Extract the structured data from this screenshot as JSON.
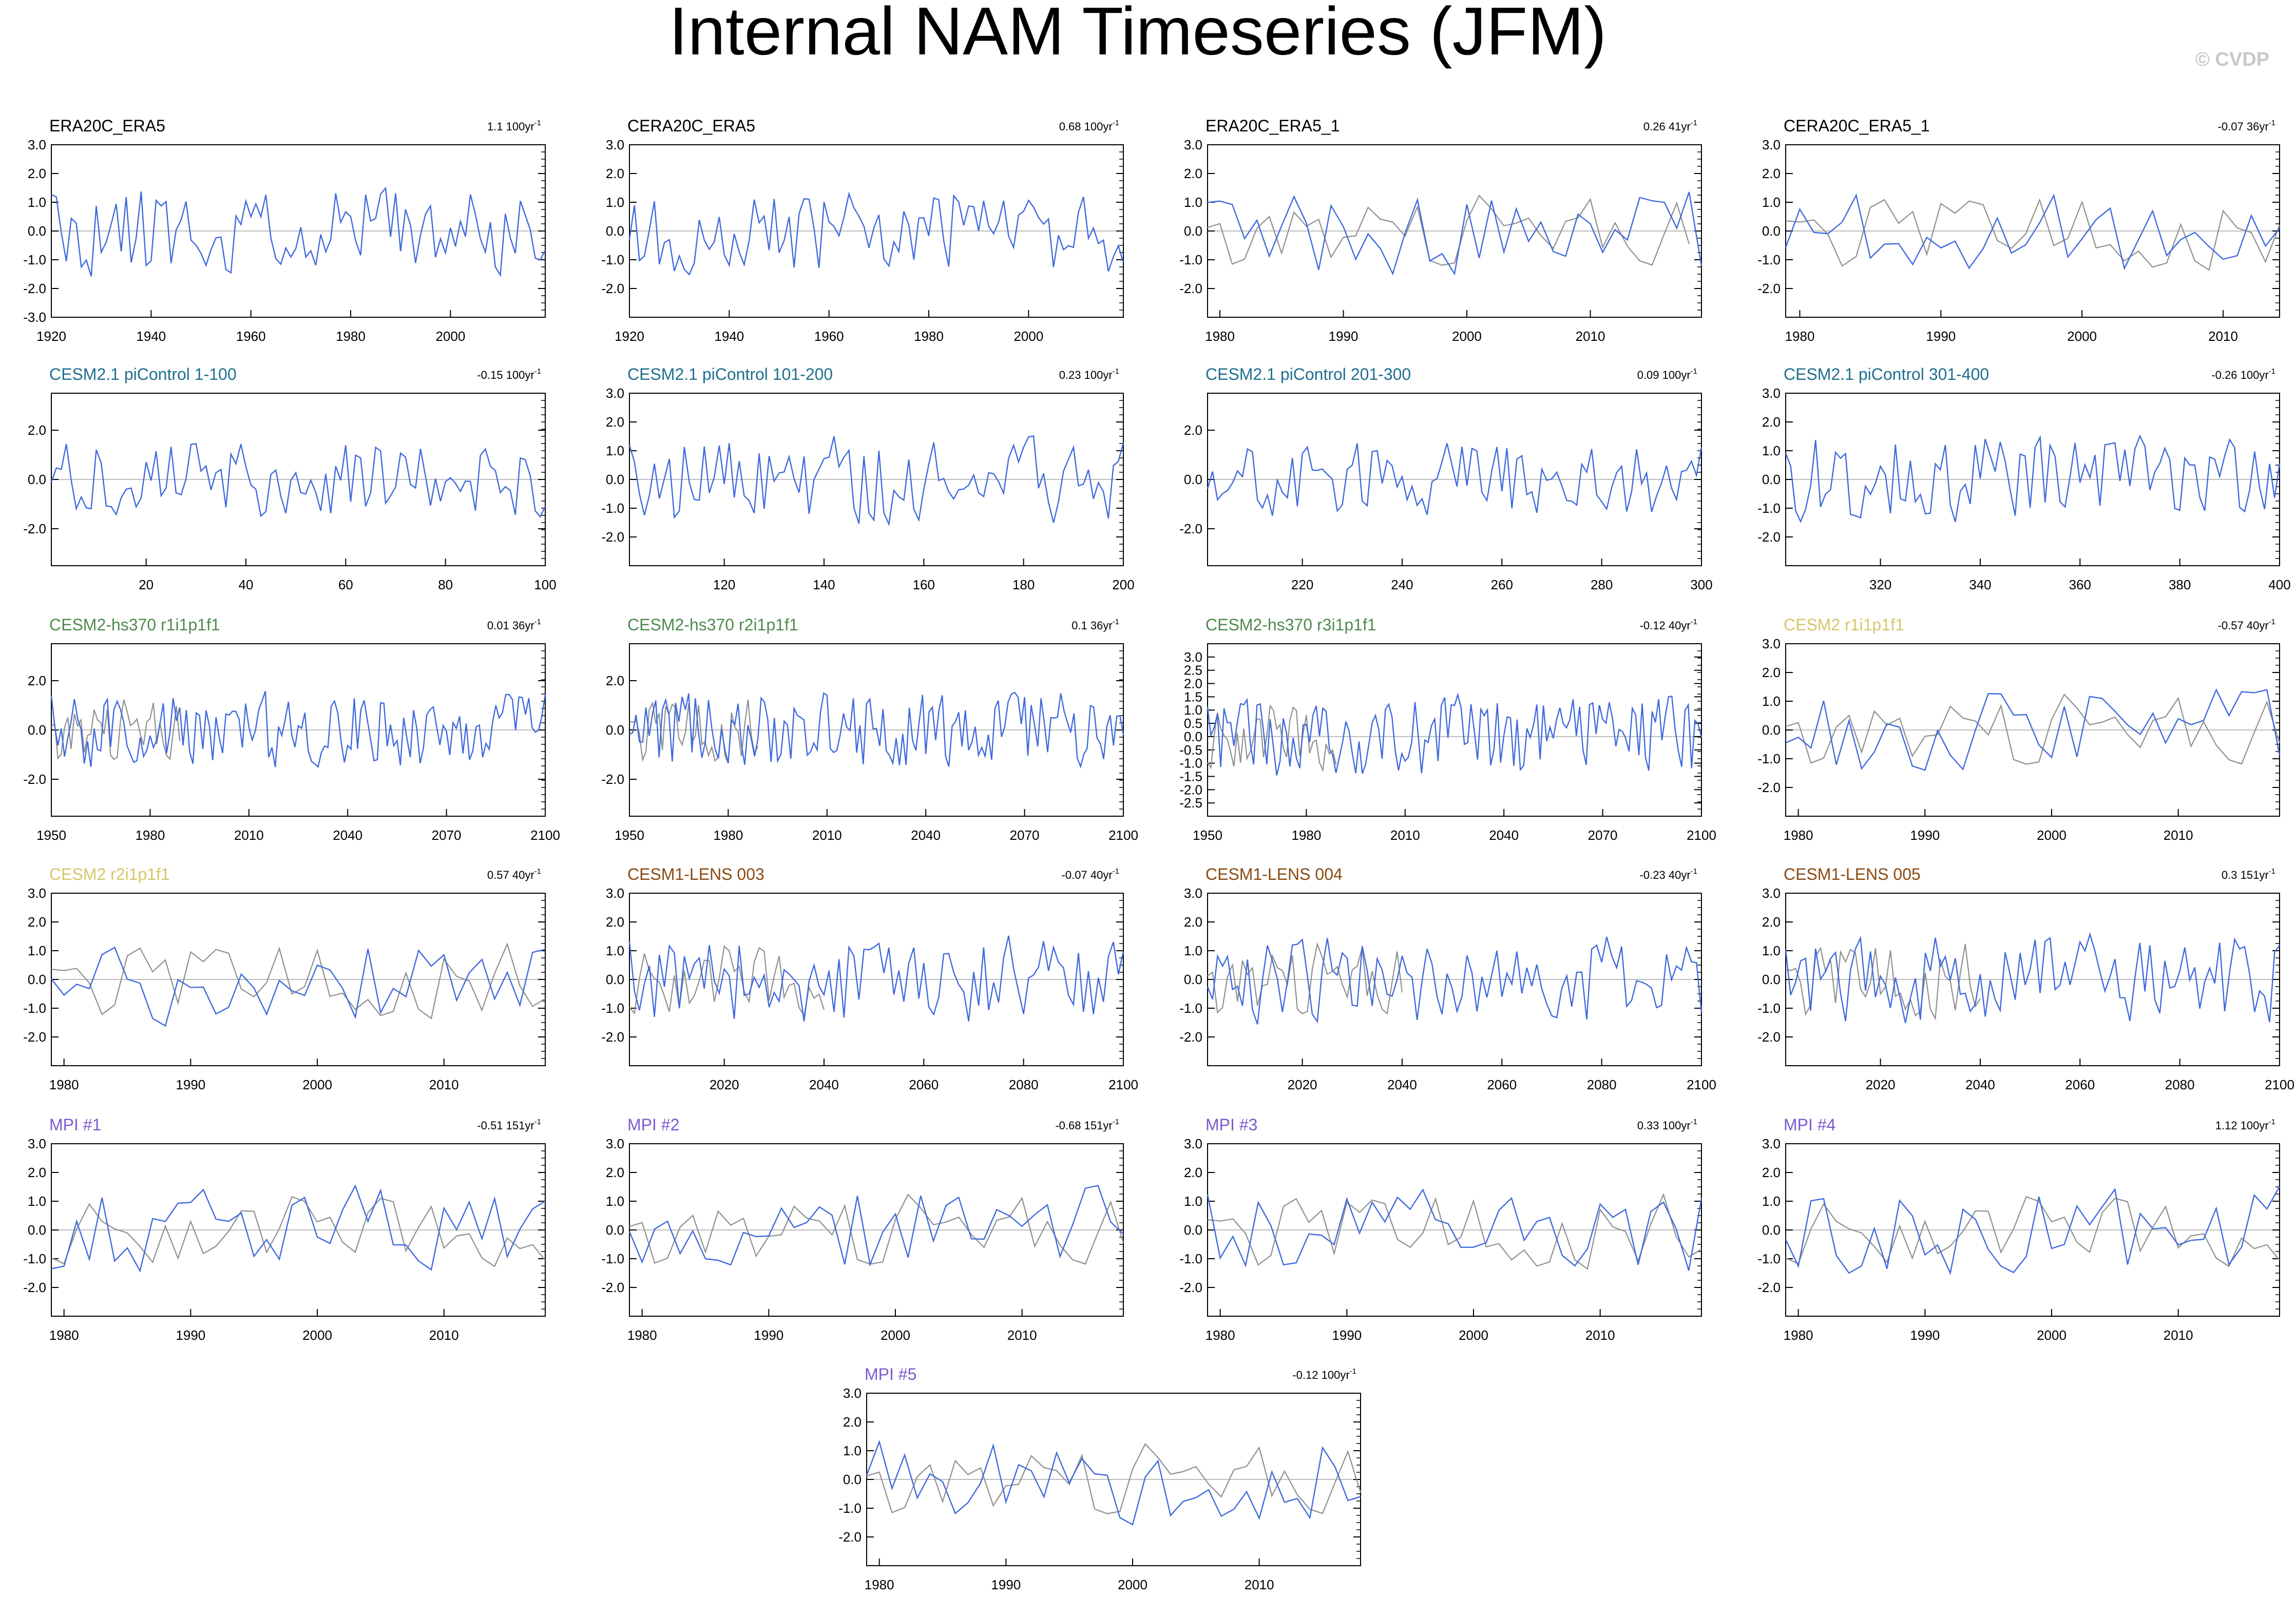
{
  "page": {
    "title": "Internal NAM Timeseries (JFM)",
    "watermark": "© CVDP"
  },
  "colors": {
    "model_line": "#3f69dd",
    "obs_line": "#8f8f8f",
    "zero_line": "#bdbdbd",
    "frame": "#000000",
    "title_obs": "#000000",
    "title_picontrol": "#1f6f8f",
    "title_hs370": "#4f8a4f",
    "title_cesm2": "#d6c66b",
    "title_lens": "#8a4a12",
    "title_mpi": "#7a5bd0"
  },
  "chart_data": [
    {
      "name": "ERA20C_ERA5",
      "title_color": "title_obs",
      "trend_value": "1.1",
      "trend_period": "100yr",
      "type": "line",
      "x_start": 1920,
      "x_end": 2019,
      "xticks": [
        1920,
        1940,
        1960,
        1980,
        2000
      ],
      "ylim": [
        -3,
        3
      ],
      "yticks": [
        "3.0",
        "2.0",
        "1.0",
        "0.0",
        "-1.0",
        "-2.0",
        "-3.0"
      ],
      "seed": 11,
      "has_obs": false
    },
    {
      "name": "CERA20C_ERA5",
      "title_color": "title_obs",
      "trend_value": "0.68",
      "trend_period": "100yr",
      "type": "line",
      "x_start": 1920,
      "x_end": 2019,
      "xticks": [
        1920,
        1940,
        1960,
        1980,
        2000
      ],
      "ylim": [
        -3,
        3
      ],
      "yticks": [
        "3.0",
        "2.0",
        "1.0",
        "0.0",
        "-1.0",
        "-2.0"
      ],
      "seed": 12,
      "has_obs": false
    },
    {
      "name": "ERA20C_ERA5_1",
      "title_color": "title_obs",
      "trend_value": "0.26",
      "trend_period": "41yr",
      "type": "line",
      "x_start": 1979,
      "x_end": 2019,
      "xticks": [
        1980,
        1990,
        2000,
        2010
      ],
      "ylim": [
        -3,
        3
      ],
      "yticks": [
        "3.0",
        "2.0",
        "1.0",
        "0.0",
        "-1.0",
        "-2.0"
      ],
      "seed": 13,
      "has_obs": true
    },
    {
      "name": "CERA20C_ERA5_1",
      "title_color": "title_obs",
      "trend_value": "-0.07",
      "trend_period": "36yr",
      "type": "line",
      "x_start": 1979,
      "x_end": 2014,
      "xticks": [
        1980,
        1990,
        2000,
        2010
      ],
      "ylim": [
        -3,
        3
      ],
      "yticks": [
        "3.0",
        "2.0",
        "1.0",
        "0.0",
        "-1.0",
        "-2.0"
      ],
      "seed": 14,
      "has_obs": true
    },
    {
      "name": "CESM2.1 piControl 1-100",
      "title_color": "title_picontrol",
      "trend_value": "-0.15",
      "trend_period": "100yr",
      "type": "line",
      "x_start": 1,
      "x_end": 100,
      "xticks": [
        20,
        40,
        60,
        80,
        100
      ],
      "ylim": [
        -3.5,
        3.5
      ],
      "yticks": [
        "2.0",
        "0.0",
        "-2.0"
      ],
      "seed": 21,
      "has_obs": false
    },
    {
      "name": "CESM2.1 piControl 101-200",
      "title_color": "title_picontrol",
      "trend_value": "0.23",
      "trend_period": "100yr",
      "type": "line",
      "x_start": 101,
      "x_end": 200,
      "xticks": [
        120,
        140,
        160,
        180,
        200
      ],
      "ylim": [
        -3,
        3
      ],
      "yticks": [
        "3.0",
        "2.0",
        "1.0",
        "0.0",
        "-1.0",
        "-2.0"
      ],
      "seed": 22,
      "has_obs": false
    },
    {
      "name": "CESM2.1 piControl 201-300",
      "title_color": "title_picontrol",
      "trend_value": "0.09",
      "trend_period": "100yr",
      "type": "line",
      "x_start": 201,
      "x_end": 300,
      "xticks": [
        220,
        240,
        260,
        280,
        300
      ],
      "ylim": [
        -3.5,
        3.5
      ],
      "yticks": [
        "2.0",
        "0.0",
        "-2.0"
      ],
      "seed": 23,
      "has_obs": false
    },
    {
      "name": "CESM2.1 piControl 301-400",
      "title_color": "title_picontrol",
      "trend_value": "-0.26",
      "trend_period": "100yr",
      "type": "line",
      "x_start": 301,
      "x_end": 400,
      "xticks": [
        320,
        340,
        360,
        380,
        400
      ],
      "ylim": [
        -3,
        3
      ],
      "yticks": [
        "3.0",
        "2.0",
        "1.0",
        "0.0",
        "-1.0",
        "-2.0"
      ],
      "seed": 24,
      "has_obs": false
    },
    {
      "name": "CESM2-hs370 r1i1p1f1",
      "title_color": "title_hs370",
      "trend_value": "0.01",
      "trend_period": "36yr",
      "type": "line",
      "x_start": 1950,
      "x_end": 2100,
      "xticks": [
        1950,
        1980,
        2010,
        2040,
        2070,
        2100
      ],
      "ylim": [
        -3.5,
        3.5
      ],
      "yticks": [
        "2.0",
        "0.0",
        "-2.0"
      ],
      "seed": 31,
      "has_obs": true
    },
    {
      "name": "CESM2-hs370 r2i1p1f1",
      "title_color": "title_hs370",
      "trend_value": "0.1",
      "trend_period": "36yr",
      "type": "line",
      "x_start": 1950,
      "x_end": 2100,
      "xticks": [
        1950,
        1980,
        2010,
        2040,
        2070,
        2100
      ],
      "ylim": [
        -3.5,
        3.5
      ],
      "yticks": [
        "2.0",
        "0.0",
        "-2.0"
      ],
      "seed": 32,
      "has_obs": true
    },
    {
      "name": "CESM2-hs370 r3i1p1f1",
      "title_color": "title_hs370",
      "trend_value": "-0.12",
      "trend_period": "40yr",
      "type": "line",
      "x_start": 1950,
      "x_end": 2100,
      "xticks": [
        1950,
        1980,
        2010,
        2040,
        2070,
        2100
      ],
      "ylim": [
        -3,
        3.5
      ],
      "yticks": [
        "3.0",
        "2.5",
        "2.0",
        "1.5",
        "1.0",
        "0.5",
        "0.0",
        "-0.5",
        "-1.0",
        "-1.5",
        "-2.0",
        "-2.5"
      ],
      "seed": 33,
      "has_obs": true
    },
    {
      "name": "CESM2 r1i1p1f1",
      "title_color": "title_cesm2",
      "trend_value": "-0.57",
      "trend_period": "40yr",
      "type": "line",
      "x_start": 1979,
      "x_end": 2018,
      "xticks": [
        1980,
        1990,
        2000,
        2010
      ],
      "ylim": [
        -3,
        3
      ],
      "yticks": [
        "3.0",
        "2.0",
        "1.0",
        "0.0",
        "-1.0",
        "-2.0"
      ],
      "seed": 34,
      "has_obs": true
    },
    {
      "name": "CESM2 r2i1p1f1",
      "title_color": "title_cesm2",
      "trend_value": "0.57",
      "trend_period": "40yr",
      "type": "line",
      "x_start": 1979,
      "x_end": 2018,
      "xticks": [
        1980,
        1990,
        2000,
        2010
      ],
      "ylim": [
        -3,
        3
      ],
      "yticks": [
        "3.0",
        "2.0",
        "1.0",
        "0.0",
        "-1.0",
        "-2.0"
      ],
      "seed": 41,
      "has_obs": true
    },
    {
      "name": "CESM1-LENS 003",
      "title_color": "title_lens",
      "trend_value": "-0.07",
      "trend_period": "40yr",
      "type": "line",
      "x_start": 2001,
      "x_end": 2100,
      "xticks": [
        2020,
        2040,
        2060,
        2080,
        2100
      ],
      "ylim": [
        -3,
        3
      ],
      "yticks": [
        "3.0",
        "2.0",
        "1.0",
        "0.0",
        "-1.0",
        "-2.0"
      ],
      "seed": 42,
      "has_obs": true
    },
    {
      "name": "CESM1-LENS 004",
      "title_color": "title_lens",
      "trend_value": "-0.23",
      "trend_period": "40yr",
      "type": "line",
      "x_start": 2001,
      "x_end": 2100,
      "xticks": [
        2020,
        2040,
        2060,
        2080,
        2100
      ],
      "ylim": [
        -3,
        3
      ],
      "yticks": [
        "3.0",
        "2.0",
        "1.0",
        "0.0",
        "-1.0",
        "-2.0"
      ],
      "seed": 43,
      "has_obs": true
    },
    {
      "name": "CESM1-LENS 005",
      "title_color": "title_lens",
      "trend_value": "0.3",
      "trend_period": "151yr",
      "type": "line",
      "x_start": 2001,
      "x_end": 2100,
      "xticks": [
        2020,
        2040,
        2060,
        2080,
        2100
      ],
      "ylim": [
        -3,
        3
      ],
      "yticks": [
        "3.0",
        "2.0",
        "1.0",
        "0.0",
        "-1.0",
        "-2.0"
      ],
      "seed": 44,
      "has_obs": true
    },
    {
      "name": "MPI #1",
      "title_color": "title_mpi",
      "trend_value": "-0.51",
      "trend_period": "151yr",
      "type": "line",
      "x_start": 1979,
      "x_end": 2018,
      "xticks": [
        1980,
        1990,
        2000,
        2010
      ],
      "ylim": [
        -3,
        3
      ],
      "yticks": [
        "3.0",
        "2.0",
        "1.0",
        "0.0",
        "-1.0",
        "-2.0"
      ],
      "seed": 51,
      "has_obs": true
    },
    {
      "name": "MPI #2",
      "title_color": "title_mpi",
      "trend_value": "-0.68",
      "trend_period": "151yr",
      "type": "line",
      "x_start": 1979,
      "x_end": 2018,
      "xticks": [
        1980,
        1990,
        2000,
        2010
      ],
      "ylim": [
        -3,
        3
      ],
      "yticks": [
        "3.0",
        "2.0",
        "1.0",
        "0.0",
        "-1.0",
        "-2.0"
      ],
      "seed": 52,
      "has_obs": true
    },
    {
      "name": "MPI #3",
      "title_color": "title_mpi",
      "trend_value": "0.33",
      "trend_period": "100yr",
      "type": "line",
      "x_start": 1979,
      "x_end": 2018,
      "xticks": [
        1980,
        1990,
        2000,
        2010
      ],
      "ylim": [
        -3,
        3
      ],
      "yticks": [
        "3.0",
        "2.0",
        "1.0",
        "0.0",
        "-1.0",
        "-2.0"
      ],
      "seed": 53,
      "has_obs": true
    },
    {
      "name": "MPI #4",
      "title_color": "title_mpi",
      "trend_value": "1.12",
      "trend_period": "100yr",
      "type": "line",
      "x_start": 1979,
      "x_end": 2018,
      "xticks": [
        1980,
        1990,
        2000,
        2010
      ],
      "ylim": [
        -3,
        3
      ],
      "yticks": [
        "3.0",
        "2.0",
        "1.0",
        "0.0",
        "-1.0",
        "-2.0"
      ],
      "seed": 54,
      "has_obs": true
    },
    {
      "name": "MPI #5",
      "title_color": "title_mpi",
      "trend_value": "-0.12",
      "trend_period": "100yr",
      "type": "line",
      "x_start": 1979,
      "x_end": 2018,
      "xticks": [
        1980,
        1990,
        2000,
        2010
      ],
      "ylim": [
        -3,
        3
      ],
      "yticks": [
        "3.0",
        "2.0",
        "1.0",
        "0.0",
        "-1.0",
        "-2.0"
      ],
      "seed": 61,
      "has_obs": true
    }
  ]
}
